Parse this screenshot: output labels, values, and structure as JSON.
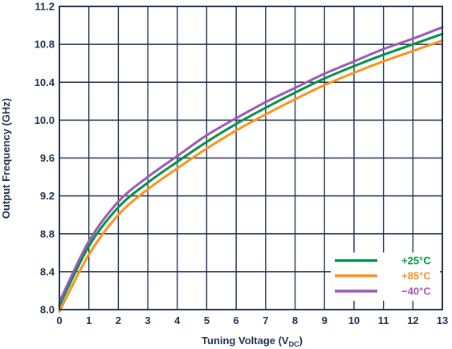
{
  "chart_data": {
    "type": "line",
    "xlabel": "Tuning Voltage (V",
    "xlabel_sub": "DC",
    "xlabel_close": ")",
    "ylabel": "Output Frequency (GHz)",
    "xlim": [
      0,
      13
    ],
    "ylim": [
      8.0,
      11.2
    ],
    "x_ticks": [
      0,
      1,
      2,
      3,
      4,
      5,
      6,
      7,
      8,
      9,
      10,
      11,
      12,
      13
    ],
    "x_tick_labels": [
      "0",
      "1",
      "2",
      "3",
      "4",
      "5",
      "6",
      "7",
      "8",
      "9",
      "10",
      "11",
      "12",
      "13"
    ],
    "y_ticks": [
      8.0,
      8.4,
      8.8,
      9.2,
      9.6,
      10.0,
      10.4,
      10.8,
      11.2
    ],
    "y_tick_labels": [
      "8.0",
      "8.4",
      "8.8",
      "9.2",
      "9.6",
      "10.0",
      "10.4",
      "10.8",
      "11.2"
    ],
    "grid": true,
    "legend_position": "bottom-right",
    "x": [
      0,
      1,
      2,
      3,
      4,
      5,
      6,
      7,
      8,
      9,
      10,
      11,
      12,
      13
    ],
    "series": [
      {
        "name": "+25°C",
        "color": "#009245",
        "values": [
          8.04,
          8.67,
          9.08,
          9.34,
          9.56,
          9.77,
          9.96,
          10.13,
          10.29,
          10.44,
          10.57,
          10.69,
          10.8,
          10.91
        ]
      },
      {
        "name": "+85°C",
        "color": "#f7931e",
        "values": [
          7.98,
          8.58,
          9.0,
          9.27,
          9.49,
          9.7,
          9.89,
          10.06,
          10.22,
          10.37,
          10.5,
          10.62,
          10.73,
          10.84
        ]
      },
      {
        "name": "−40°C",
        "color": "#9b59b6",
        "values": [
          8.08,
          8.72,
          9.14,
          9.4,
          9.62,
          9.84,
          10.02,
          10.19,
          10.34,
          10.49,
          10.62,
          10.75,
          10.86,
          10.98
        ]
      }
    ]
  }
}
